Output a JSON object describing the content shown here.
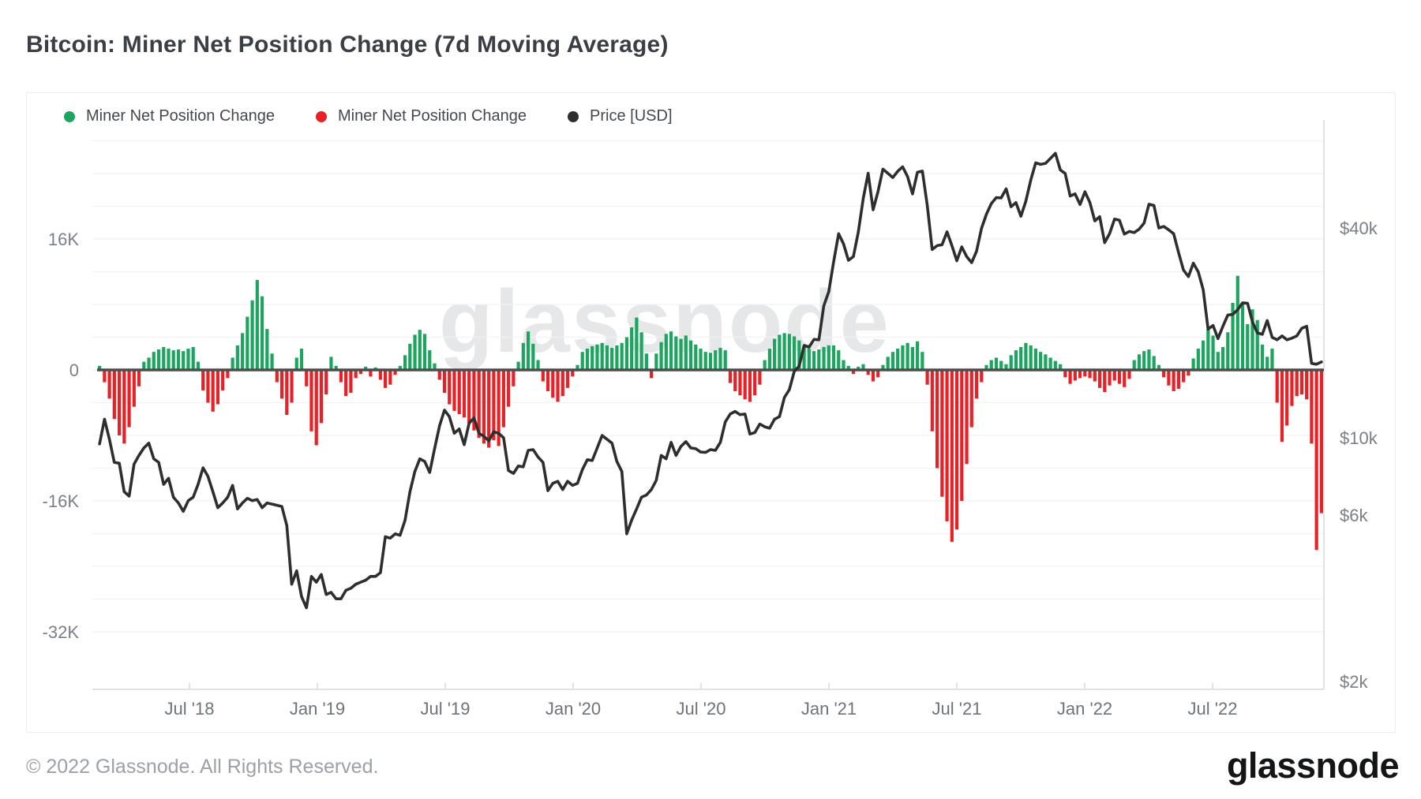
{
  "page": {
    "title": "Bitcoin: Miner Net Position Change (7d Moving Average)",
    "footer_copyright": "© 2022 Glassnode. All Rights Reserved.",
    "brand_logo_text": "glassnode",
    "watermark_text": "glassnode"
  },
  "legend": [
    {
      "label": "Miner Net Position Change",
      "color": "#1da560",
      "icon": "green-dot"
    },
    {
      "label": "Miner Net Position Change",
      "color": "#e82127",
      "icon": "red-dot"
    },
    {
      "label": "Price [USD]",
      "color": "#2e2e2e",
      "icon": "black-dot"
    }
  ],
  "colors": {
    "bar_positive": "#1da560",
    "bar_negative": "#e82127",
    "price_line": "#2e2e2e",
    "zero_line": "#4d4d4d",
    "gridline": "#f1f2f4",
    "axis_line": "#e0e3e6",
    "axis_text": "#7a8086"
  },
  "chart_data": {
    "type": "mixed-bar-line",
    "title": "Bitcoin: Miner Net Position Change (7d Moving Average)",
    "start_date": "2018-02-25",
    "interval_days": 7,
    "points": 249,
    "left_axis": {
      "unit": "K BTC",
      "scale": "linear",
      "tick_labels": [
        "16K",
        "0",
        "-16K",
        "-32K"
      ],
      "tick_values_k": [
        16,
        0,
        -16,
        -32
      ],
      "range_k": [
        -34,
        29
      ]
    },
    "right_axis": {
      "unit": "USD",
      "scale": "log",
      "tick_labels": [
        "$40k",
        "$10k",
        "$6k",
        "$2k"
      ],
      "tick_values": [
        40000,
        10000,
        6000,
        2000
      ],
      "range": [
        1500,
        80000
      ]
    },
    "x_axis": {
      "tick_labels": [
        "Jul '18",
        "Jan '19",
        "Jul '19",
        "Jan '20",
        "Jul '20",
        "Jan '21",
        "Jul '21",
        "Jan '22",
        "Jul '22"
      ],
      "tick_months_from_jul_2018": [
        0,
        6,
        12,
        18,
        24,
        30,
        36,
        42,
        48
      ]
    },
    "series": [
      {
        "name": "Miner Net Position Change",
        "type": "bar",
        "unit": "K BTC",
        "positive_color": "#1da560",
        "negative_color": "#e82127",
        "values_k": [
          0.5,
          -1.5,
          -3.5,
          -6,
          -8,
          -9,
          -7,
          -4.5,
          -2,
          1,
          1.5,
          2.2,
          2.5,
          2.8,
          2.6,
          2.4,
          2.5,
          2.3,
          2.6,
          2.8,
          1,
          -2.5,
          -4,
          -5.1,
          -4.2,
          -2.5,
          -1,
          1.5,
          3,
          4.5,
          6.5,
          8.5,
          11,
          9,
          5,
          2,
          -1.5,
          -3.5,
          -5.5,
          -4,
          1.5,
          2.6,
          -2,
          -7.5,
          -9.2,
          -6.5,
          -3,
          1.6,
          0.5,
          -1.5,
          -3.2,
          -2.8,
          -1,
          -0.5,
          0.4,
          -0.8,
          0.3,
          -1.2,
          -2.2,
          -1.8,
          -0.6,
          0.5,
          1.8,
          3.2,
          4.3,
          4.9,
          4.4,
          2.4,
          0.8,
          -1.2,
          -2.8,
          -4.2,
          -5,
          -5.4,
          -5.8,
          -6.5,
          -7.4,
          -8.3,
          -9,
          -9.5,
          -8.6,
          -9.3,
          -7,
          -4.5,
          -2,
          1,
          3.3,
          4.7,
          3.2,
          1.2,
          -1.4,
          -2.6,
          -3.4,
          -3.9,
          -3.2,
          -2.2,
          -0.8,
          0.6,
          2.2,
          2.6,
          2.9,
          3.1,
          3.3,
          3,
          2.7,
          3,
          3.3,
          4,
          5.2,
          6.4,
          4.6,
          2,
          -1,
          2,
          3.4,
          4.4,
          4.7,
          4.1,
          3.8,
          4.2,
          3.6,
          3.1,
          2.6,
          2.2,
          2.1,
          2.4,
          2.7,
          2.4,
          -1.6,
          -2.6,
          -3.1,
          -3.6,
          -3.9,
          -3.1,
          -1.8,
          1.2,
          2.6,
          3.8,
          4.3,
          4.5,
          4.4,
          4.1,
          3.6,
          3,
          2.6,
          2.3,
          2.5,
          2.8,
          3,
          3,
          2.4,
          1.2,
          0.5,
          -0.5,
          0.4,
          0.7,
          -0.6,
          -1.4,
          -0.9,
          0.6,
          1.6,
          2.2,
          2.6,
          3,
          3.3,
          2.8,
          3.5,
          2.2,
          -1.8,
          -7.5,
          -12,
          -15.5,
          -18.5,
          -21,
          -19.5,
          -16,
          -11.5,
          -7,
          -3.5,
          -1.5,
          0.6,
          1.2,
          1.5,
          1.1,
          0.7,
          1.8,
          2.4,
          2.8,
          3.3,
          3,
          2.6,
          2.2,
          1.9,
          1.5,
          1.1,
          0.7,
          -0.9,
          -1.7,
          -1.3,
          -1,
          -0.8,
          -1,
          -1.4,
          -2.2,
          -2.7,
          -1.9,
          -1.3,
          -1.7,
          -2.1,
          -1.1,
          1.2,
          1.9,
          2.3,
          2.5,
          1.7,
          0.6,
          -0.9,
          -1.9,
          -2.6,
          -2.3,
          -1.5,
          -0.7,
          1.4,
          2.6,
          3.6,
          5,
          4.2,
          2.2,
          2.8,
          4.6,
          8.2,
          11.5,
          8.2,
          5.6,
          7.4,
          6.1,
          3.1,
          1.6,
          2.6,
          -4,
          -8.8,
          -6.8,
          -4.4,
          -3.2,
          -3,
          -3.6,
          -9,
          -22,
          -17.5
        ]
      },
      {
        "name": "Price [USD]",
        "type": "line",
        "unit": "USD",
        "color": "#2e2e2e",
        "values": [
          9600,
          11300,
          9900,
          8500,
          8450,
          7000,
          6800,
          8400,
          8900,
          9350,
          9650,
          8700,
          8500,
          7350,
          7650,
          6750,
          6500,
          6150,
          6600,
          6750,
          7350,
          8200,
          7750,
          7000,
          6300,
          6500,
          6750,
          7300,
          6250,
          6500,
          6700,
          6600,
          6650,
          6300,
          6500,
          6450,
          6400,
          6350,
          5600,
          3800,
          4150,
          3500,
          3250,
          4000,
          3850,
          4050,
          3550,
          3600,
          3450,
          3450,
          3650,
          3700,
          3800,
          3850,
          3900,
          4000,
          4000,
          4100,
          5200,
          5150,
          5300,
          5250,
          5800,
          7000,
          8000,
          8700,
          8550,
          7950,
          9300,
          10800,
          12000,
          11500,
          10300,
          10600,
          9550,
          11000,
          11400,
          10300,
          10100,
          9800,
          10400,
          10300,
          10000,
          8050,
          7900,
          8300,
          8250,
          9200,
          9250,
          8800,
          8500,
          7050,
          7400,
          7500,
          7100,
          7500,
          7300,
          7400,
          8100,
          8650,
          8600,
          9350,
          10150,
          9900,
          9650,
          8550,
          8000,
          5300,
          5800,
          6250,
          6750,
          6850,
          7100,
          7550,
          8900,
          8700,
          9700,
          8900,
          9450,
          9750,
          9350,
          9300,
          9100,
          9075,
          9250,
          9200,
          9700,
          11100,
          11700,
          11900,
          11650,
          11700,
          10250,
          10350,
          10950,
          10750,
          10650,
          11300,
          11500,
          13050,
          13750,
          15500,
          16050,
          18400,
          18200,
          19150,
          19100,
          23900,
          26250,
          32000,
          38500,
          36000,
          32300,
          33100,
          38900,
          48600,
          57400,
          45100,
          50900,
          59000,
          57400,
          55800,
          58200,
          59900,
          56200,
          50100,
          57800,
          58250,
          46400,
          34700,
          35600,
          35800,
          39000,
          35600,
          32200,
          35300,
          33100,
          31800,
          34300,
          39900,
          43800,
          47000,
          48900,
          48800,
          51800,
          46000,
          47300,
          43200,
          47700,
          54900,
          61500,
          60900,
          61300,
          63300,
          65500,
          58700,
          57300,
          49400,
          50100,
          46700,
          50800,
          47300,
          41900,
          43100,
          36300,
          38500,
          42400,
          42100,
          38400,
          39100,
          38800,
          39700,
          41300,
          46800,
          46400,
          40000,
          40400,
          39500,
          38500,
          34000,
          30300,
          29000,
          31700,
          29900,
          26600,
          20500,
          21000,
          19250,
          20900,
          22500,
          22600,
          23300,
          24400,
          24300,
          21500,
          20000,
          19800,
          21700,
          19400,
          19100,
          19600,
          19100,
          19300,
          19600,
          20600,
          20900,
          16350,
          16250,
          16500
        ]
      }
    ]
  }
}
